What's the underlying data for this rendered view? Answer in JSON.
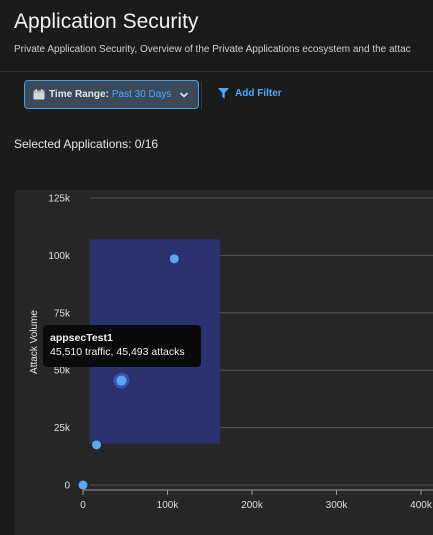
{
  "header": {
    "title": "Application Security",
    "subtitle": "Private Application Security, Overview of the Private Applications ecosystem and the attac"
  },
  "filters": {
    "time_range_label": "Time Range:",
    "time_range_value": "Past 30 Days",
    "add_filter_label": "Add Filter"
  },
  "selection": {
    "text": "Selected Applications: 0/16"
  },
  "tooltip": {
    "title": "appsecTest1",
    "detail": "45,510 traffic, 45,493 attacks"
  },
  "colors": {
    "accent": "#4aa8ff",
    "point": "#5aa9f0",
    "selection_band": "#2a3270",
    "background": "#1b1b1b",
    "panel": "#262626"
  },
  "chart_data": {
    "type": "scatter",
    "ylabel": "Attack Volume",
    "xlabel": "",
    "xlim": [
      0,
      400000
    ],
    "ylim": [
      0,
      125000
    ],
    "x_ticks": [
      0,
      100000,
      200000,
      300000,
      400000
    ],
    "x_tick_labels": [
      "0",
      "100k",
      "200k",
      "300k",
      "400k"
    ],
    "y_ticks": [
      0,
      25000,
      50000,
      75000,
      100000,
      125000
    ],
    "y_tick_labels": [
      "0",
      "25k",
      "50k",
      "75k",
      "100k",
      "125k"
    ],
    "grid": true,
    "selection_range": {
      "x": [
        8000,
        162000
      ],
      "y": [
        18000,
        107000
      ]
    },
    "points": [
      {
        "x": 0,
        "y": 0
      },
      {
        "x": 16000,
        "y": 17500
      },
      {
        "x": 45510,
        "y": 45493,
        "highlight": true
      },
      {
        "x": 108000,
        "y": 98500
      }
    ]
  }
}
